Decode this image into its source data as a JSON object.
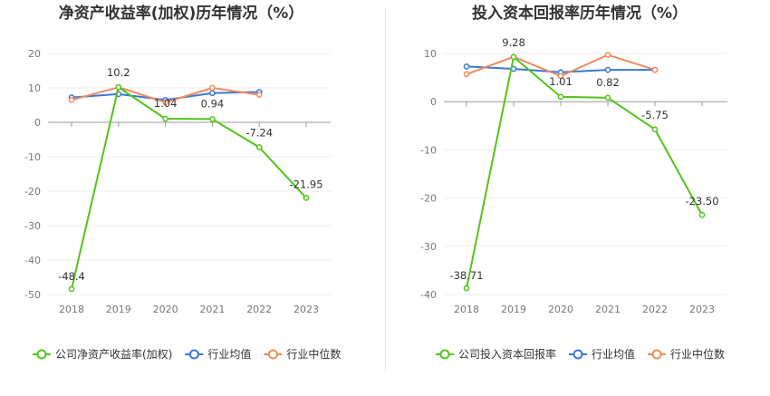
{
  "chart_data": [
    {
      "type": "line",
      "title": "净资产收益率(加权)历年情况（%）",
      "categories": [
        "2018",
        "2019",
        "2020",
        "2021",
        "2022",
        "2023"
      ],
      "ylim": [
        -50,
        20
      ],
      "yticks": [
        20,
        10,
        0,
        -10,
        -20,
        -30,
        -40,
        -50
      ],
      "grid": true,
      "legend_position": "bottom-left",
      "series": [
        {
          "name": "公司净资产收益率(加权)",
          "color": "#52c41a",
          "values": [
            -48.4,
            10.2,
            1.04,
            0.94,
            -7.24,
            -21.95
          ],
          "labels": [
            "-48.4",
            "10.2",
            "1.04",
            "0.94",
            "-7.24",
            "-21.95"
          ]
        },
        {
          "name": "行业均值",
          "color": "#3a78d6",
          "values": [
            7.2,
            8.2,
            6.5,
            8.5,
            8.8,
            null
          ],
          "labels": []
        },
        {
          "name": "行业中位数",
          "color": "#f08a5d",
          "values": [
            6.5,
            10.2,
            5.8,
            10.0,
            8.0,
            null
          ],
          "labels": []
        }
      ]
    },
    {
      "type": "line",
      "title": "投入资本回报率历年情况（%）",
      "categories": [
        "2018",
        "2019",
        "2020",
        "2021",
        "2022",
        "2023"
      ],
      "ylim": [
        -40,
        10
      ],
      "yticks": [
        10,
        0,
        -10,
        -20,
        -30,
        -40
      ],
      "grid": true,
      "legend_position": "bottom-left",
      "series": [
        {
          "name": "公司投入资本回报率",
          "color": "#52c41a",
          "values": [
            -38.71,
            9.28,
            1.01,
            0.82,
            -5.75,
            -23.5
          ],
          "labels": [
            "-38.71",
            "9.28",
            "1.01",
            "0.82",
            "-5.75",
            "-23.50"
          ]
        },
        {
          "name": "行业均值",
          "color": "#3a78d6",
          "values": [
            7.3,
            6.8,
            6.1,
            6.6,
            6.6,
            null
          ],
          "labels": []
        },
        {
          "name": "行业中位数",
          "color": "#f08a5d",
          "values": [
            5.7,
            9.3,
            5.3,
            9.7,
            6.6,
            null
          ],
          "labels": []
        }
      ]
    }
  ]
}
